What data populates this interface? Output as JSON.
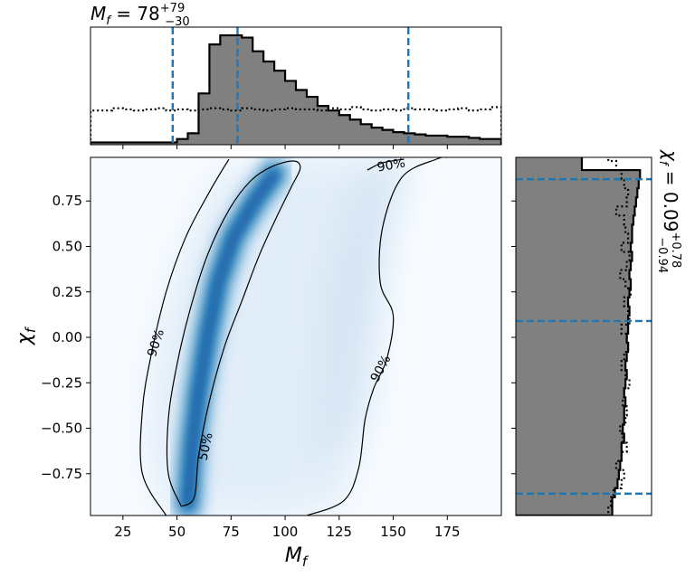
{
  "chart_data": [
    {
      "type": "histogram",
      "panel": "top-marginal",
      "title_parts": {
        "symbol": "M",
        "subscript": "f",
        "equals": " = ",
        "median": "78",
        "upper": "+79",
        "lower": "−30"
      },
      "x_range": [
        10,
        200
      ],
      "bins_start": 10,
      "bin_width": 5,
      "filled_counts": [
        2,
        2,
        2,
        2,
        2,
        2,
        2,
        2,
        5,
        10,
        45,
        88,
        96,
        96,
        94,
        82,
        73,
        65,
        56,
        48,
        42,
        34,
        30,
        26,
        22,
        18,
        15,
        13,
        11,
        10,
        9,
        8,
        8,
        7,
        7,
        6,
        5,
        5
      ],
      "prior_counts": [
        30,
        30,
        32,
        31,
        30,
        31,
        32,
        30,
        31,
        30,
        31,
        32,
        31,
        30,
        32,
        31,
        30,
        31,
        32,
        31,
        31,
        30,
        32,
        31,
        33,
        31,
        30,
        31,
        30,
        32,
        31,
        31,
        30,
        31,
        32,
        30,
        31,
        33
      ],
      "y_max": 100,
      "quantile_lines": [
        48,
        78,
        157
      ],
      "colors": {
        "fill": "#808080",
        "edge": "#000000",
        "quantile": "#1f77b4"
      }
    },
    {
      "type": "heatmap",
      "panel": "joint-density",
      "xlabel_parts": {
        "symbol": "M",
        "subscript": "f"
      },
      "ylabel_parts": {
        "symbol": "χ",
        "subscript": "f"
      },
      "x_range": [
        10,
        200
      ],
      "y_range": [
        -0.98,
        0.99
      ],
      "x_ticks": [
        25,
        50,
        75,
        100,
        125,
        150,
        175
      ],
      "y_ticks": [
        0.75,
        0.5,
        0.25,
        0.0,
        -0.25,
        -0.5,
        -0.75
      ],
      "x_tick_labels": [
        "25",
        "50",
        "75",
        "100",
        "125",
        "150",
        "175"
      ],
      "y_tick_labels": [
        "0.75",
        "0.50",
        "0.25",
        "0.00",
        "−0.25",
        "−0.50",
        "−0.75"
      ],
      "ridge": [
        [
          55,
          -0.92
        ],
        [
          57,
          -0.6
        ],
        [
          60,
          -0.3
        ],
        [
          64,
          0.0
        ],
        [
          69,
          0.3
        ],
        [
          76,
          0.55
        ],
        [
          86,
          0.75
        ],
        [
          95,
          0.9
        ]
      ],
      "contours": [
        {
          "level": "50%",
          "points": [
            [
              52,
              -0.93
            ],
            [
              46,
              -0.75
            ],
            [
              46,
              -0.45
            ],
            [
              50,
              -0.15
            ],
            [
              56,
              0.15
            ],
            [
              64,
              0.45
            ],
            [
              74,
              0.7
            ],
            [
              84,
              0.86
            ],
            [
              94,
              0.94
            ],
            [
              104,
              0.97
            ],
            [
              107,
              0.93
            ],
            [
              103,
              0.83
            ],
            [
              96,
              0.66
            ],
            [
              88,
              0.45
            ],
            [
              80,
              0.2
            ],
            [
              72,
              -0.05
            ],
            [
              65,
              -0.35
            ],
            [
              60,
              -0.65
            ],
            [
              58,
              -0.88
            ],
            [
              52,
              -0.93
            ]
          ],
          "label_at": [
            63,
            -0.6
          ],
          "label_rotation": -78
        },
        {
          "level": "90%",
          "points": [
            [
              45,
              -0.98
            ],
            [
              34,
              -0.75
            ],
            [
              34,
              -0.4
            ],
            [
              38,
              -0.1
            ],
            [
              45,
              0.25
            ],
            [
              54,
              0.55
            ],
            [
              65,
              0.8
            ],
            [
              74,
              0.98
            ]
          ],
          "label_at": [
            40,
            -0.03
          ],
          "label_rotation": -72
        },
        {
          "level": "90%",
          "points": [
            [
              110,
              -0.98
            ],
            [
              127,
              -0.9
            ],
            [
              134,
              -0.72
            ],
            [
              137,
              -0.45
            ],
            [
              141,
              -0.28
            ],
            [
              147,
              -0.12
            ],
            [
              150,
              0.12
            ],
            [
              144,
              0.3
            ],
            [
              145,
              0.6
            ],
            [
              154,
              0.88
            ],
            [
              170,
              0.98
            ],
            [
              175,
              0.99
            ]
          ],
          "label_at": [
            144,
            -0.17
          ],
          "label_rotation": -62
        },
        {
          "level": "90%",
          "points": [
            [
              138,
              0.92
            ],
            [
              145,
              0.96
            ],
            [
              155,
              0.98
            ]
          ],
          "label_at": [
            149,
            0.95
          ],
          "label_rotation": -10
        }
      ],
      "colors": {
        "low": "#f7fbff",
        "high": "#08306b",
        "contour": "#000000"
      }
    },
    {
      "type": "histogram",
      "orientation": "horizontal",
      "panel": "right-marginal",
      "title_parts": {
        "symbol": "χ",
        "subscript": "f",
        "equals": " = ",
        "median": "0.09",
        "upper": "+0.78",
        "lower": "−0.94"
      },
      "y_range": [
        -0.98,
        0.99
      ],
      "bins_start": -0.98,
      "bin_width": 0.05,
      "filled_counts": [
        73,
        73,
        75,
        77,
        78,
        79,
        80,
        80,
        82,
        81,
        82,
        82,
        83,
        82,
        83,
        84,
        83,
        84,
        85,
        84,
        85,
        85,
        86,
        85,
        86,
        87,
        86,
        87,
        88,
        87,
        88,
        88,
        89,
        90,
        91,
        92,
        93,
        94,
        50,
        50
      ],
      "prior_counts": [
        70,
        72,
        74,
        80,
        82,
        76,
        80,
        84,
        81,
        79,
        83,
        84,
        81,
        82,
        86,
        83,
        80,
        82,
        85,
        84,
        80,
        86,
        85,
        82,
        87,
        83,
        79,
        84,
        86,
        80,
        85,
        83,
        82,
        76,
        84,
        85,
        82,
        80,
        76,
        70
      ],
      "x_max": 100,
      "quantile_lines": [
        -0.86,
        0.09,
        0.87
      ],
      "colors": {
        "fill": "#808080",
        "edge": "#000000",
        "quantile": "#1f77b4"
      }
    }
  ]
}
